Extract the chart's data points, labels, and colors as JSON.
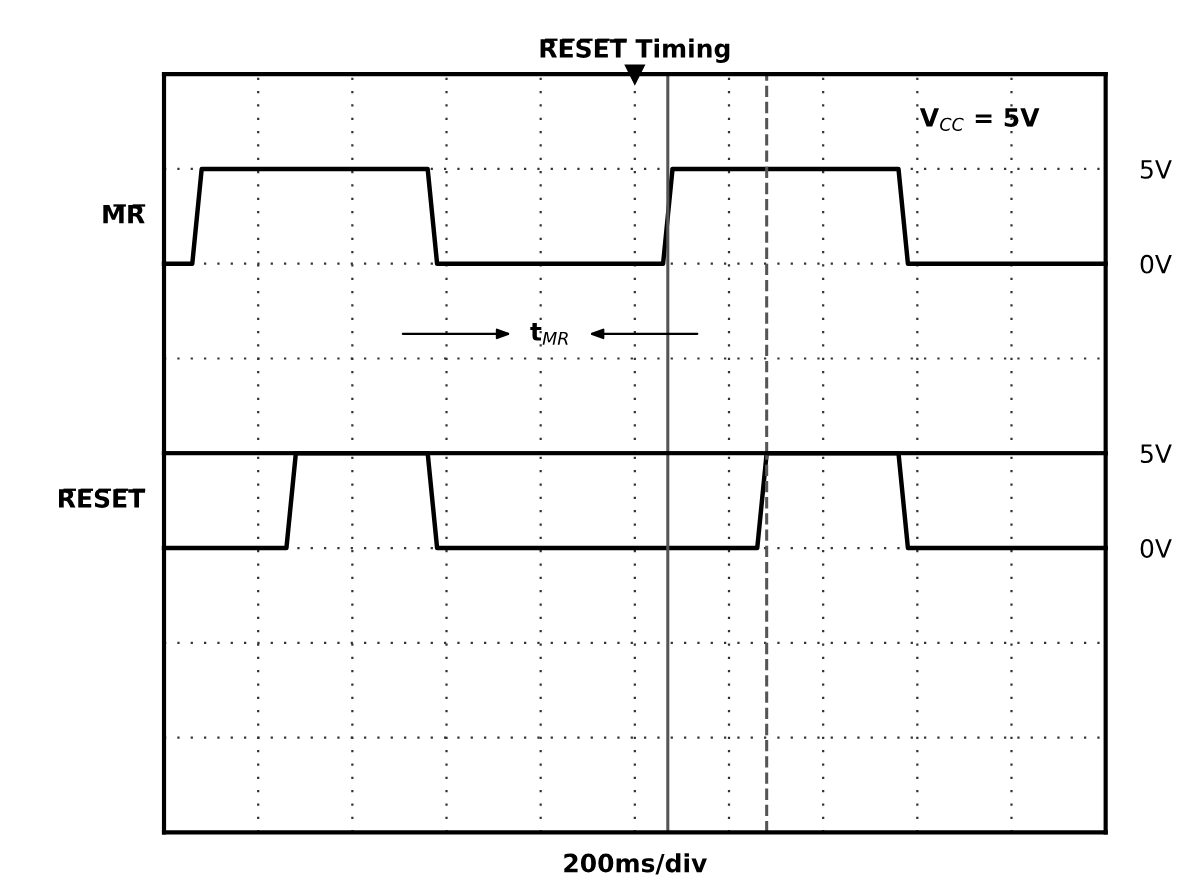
{
  "chart_data": [
    {
      "type": "line",
      "title": "R̅E̅S̅E̅T̅ Timing",
      "categories": [
        null,
        null,
        null,
        null,
        null,
        null,
        null,
        null,
        null,
        null,
        null,
        null,
        null,
        null,
        null,
        null,
        null,
        null,
        null,
        null,
        null,
        null,
        null,
        null,
        null,
        null,
        null,
        null,
        null,
        null,
        null,
        null,
        null,
        null,
        null,
        null,
        null,
        null,
        null,
        null,
        null,
        null,
        null,
        null,
        null,
        null,
        null,
        null,
        null,
        null,
        null,
        null,
        null,
        null,
        null,
        null,
        null,
        null,
        null,
        null,
        null,
        null,
        null,
        null,
        null,
        null,
        null,
        null,
        null,
        null,
        null,
        null,
        null,
        null,
        null,
        null,
        null,
        null,
        null,
        null,
        null,
        null,
        null,
        null,
        null,
        null,
        null,
        null,
        null,
        null,
        null,
        null,
        null,
        null,
        null,
        null,
        null,
        null,
        null,
        null,
        null
      ],
      "series": [
        {
          "name": "M̅R̅",
          "color": "#000000",
          "values": [
            0,
            0,
            0,
            0,
            5,
            5,
            5,
            5,
            5,
            5,
            5,
            5,
            5,
            5,
            5,
            5,
            5,
            5,
            5,
            5,
            5,
            5,
            5,
            5,
            5,
            5,
            5,
            5,
            5,
            0,
            0,
            0,
            0,
            0,
            0,
            0,
            0,
            0,
            0,
            0,
            0,
            0,
            0,
            0,
            0,
            0,
            0,
            0,
            0,
            0,
            0,
            0,
            0,
            0,
            5,
            5,
            5,
            5,
            5,
            5,
            5,
            5,
            5,
            5,
            5,
            5,
            5,
            5,
            5,
            5,
            5,
            5,
            5,
            5,
            5,
            5,
            5,
            5,
            5,
            0,
            0,
            0,
            0,
            0,
            0,
            0,
            0,
            0,
            0,
            0,
            0,
            0,
            0,
            0,
            0,
            0,
            0,
            0,
            0,
            0,
            0
          ]
        }
      ],
      "ylim": [
        -10,
        10
      ],
      "yticks": [
        {
          "value": -10,
          "label": null
        },
        {
          "value": -5,
          "label": null
        },
        {
          "value": 0,
          "label": "0V"
        },
        {
          "value": 5,
          "label": "5V"
        },
        {
          "value": 10,
          "label": null
        }
      ],
      "annotations": [
        "V$_{CC}$ = 5V",
        "t$_{MR}$"
      ],
      "grid": true,
      "legend": false,
      "line_style": "solid",
      "marker": "none"
    },
    {
      "type": "line",
      "xlabel": "200ms/div",
      "categories": [
        null,
        null,
        null,
        null,
        null,
        null,
        null,
        null,
        null,
        null,
        null,
        null,
        null,
        null,
        null,
        null,
        null,
        null,
        null,
        null,
        null,
        null,
        null,
        null,
        null,
        null,
        null,
        null,
        null,
        null,
        null,
        null,
        null,
        null,
        null,
        null,
        null,
        null,
        null,
        null,
        null,
        null,
        null,
        null,
        null,
        null,
        null,
        null,
        null,
        null,
        null,
        null,
        null,
        null,
        null,
        null,
        null,
        null,
        null,
        null,
        null,
        null,
        null,
        null,
        null,
        null,
        null,
        null,
        null,
        null,
        null,
        null,
        null,
        null,
        null,
        null,
        null,
        null,
        null,
        null,
        null,
        null,
        null,
        null,
        null,
        null,
        null,
        null,
        null,
        null,
        null,
        null,
        null,
        null,
        null,
        null,
        null,
        null,
        null,
        null,
        null
      ],
      "series": [
        {
          "name": "R̅E̅S̅E̅T̅",
          "color": "#000000",
          "values": [
            0,
            0,
            0,
            0,
            0,
            0,
            0,
            0,
            0,
            0,
            0,
            0,
            0,
            0,
            5,
            5,
            5,
            5,
            5,
            5,
            5,
            5,
            5,
            5,
            5,
            5,
            5,
            5,
            5,
            0,
            0,
            0,
            0,
            0,
            0,
            0,
            0,
            0,
            0,
            0,
            0,
            0,
            0,
            0,
            0,
            0,
            0,
            0,
            0,
            0,
            0,
            0,
            0,
            0,
            0,
            0,
            0,
            0,
            0,
            0,
            0,
            0,
            0,
            0,
            5,
            5,
            5,
            5,
            5,
            5,
            5,
            5,
            5,
            5,
            5,
            5,
            5,
            5,
            5,
            0,
            0,
            0,
            0,
            0,
            0,
            0,
            0,
            0,
            0,
            0,
            0,
            0,
            0,
            0,
            0,
            0,
            0,
            0,
            0,
            0,
            0
          ]
        }
      ],
      "ylim": [
        -15,
        5
      ],
      "yticks": [
        {
          "value": -15,
          "label": null
        },
        {
          "value": -10,
          "label": null
        },
        {
          "value": -5,
          "label": null
        },
        {
          "value": 0,
          "label": "0V"
        },
        {
          "value": 5,
          "label": "5V"
        }
      ],
      "grid": true,
      "legend": false,
      "line_style": "solid",
      "marker": "none"
    }
  ]
}
